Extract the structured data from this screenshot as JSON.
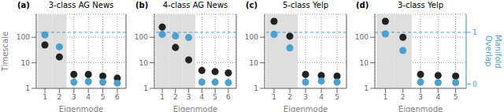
{
  "chart_data": [
    {
      "type": "scatter",
      "title": "3-class AG News",
      "annotation": "(a)",
      "xlabel": "Eigenmode",
      "ylabel": "Timescale",
      "log": "y",
      "grid": true,
      "x": [
        1,
        2,
        3,
        4,
        5,
        6
      ],
      "xlim": [
        0.4,
        6.6
      ],
      "xticks": [
        1,
        2,
        3,
        4,
        5,
        6
      ],
      "ylim": [
        1,
        800
      ],
      "yticks": [
        1,
        10,
        100
      ],
      "y2lim": [
        -0.08,
        1.35
      ],
      "series": [
        {
          "color": "#222222",
          "values": [
            50,
            17,
            3.5,
            3.5,
            3.0,
            2.5
          ]
        },
        {
          "color": "#4d9fcc",
          "axis": "y2",
          "values": [
            0.95,
            0.72,
            0.04,
            0.05,
            0.04,
            0.02
          ]
        }
      ],
      "shaded": {
        "x": [
          1,
          2
        ],
        "color": "#dedede"
      },
      "reference_line": {
        "y2": 1.0,
        "color": "#4d9fcc",
        "line_style": "dashed"
      }
    },
    {
      "type": "scatter",
      "title": "4-class AG News",
      "annotation": "(b)",
      "xlabel": "Eigenmode",
      "log": "y",
      "grid": true,
      "x": [
        1,
        2,
        3,
        4,
        5,
        6
      ],
      "xlim": [
        0.4,
        6.6
      ],
      "xticks": [
        1,
        2,
        3,
        4,
        5,
        6
      ],
      "ylim": [
        1,
        800
      ],
      "yticks": [
        1,
        10,
        100
      ],
      "y2lim": [
        -0.08,
        1.35
      ],
      "series": [
        {
          "color": "#222222",
          "values": [
            250,
            40,
            13,
            5.0,
            4.5,
            4.0
          ]
        },
        {
          "color": "#4d9fcc",
          "axis": "y2",
          "values": [
            0.96,
            0.93,
            0.9,
            0.04,
            0.04,
            0.03
          ]
        }
      ],
      "shaded": {
        "x": [
          1,
          2,
          3
        ],
        "color": "#dedede"
      },
      "reference_line": {
        "y2": 1.0,
        "color": "#4d9fcc",
        "line_style": "dashed"
      }
    },
    {
      "type": "scatter",
      "title": "5-class Yelp",
      "annotation": "(c)",
      "xlabel": "Eigenmode",
      "log": "y",
      "grid": true,
      "x": [
        1,
        2,
        3,
        4,
        5
      ],
      "xlim": [
        0.4,
        5.6
      ],
      "xticks": [
        1,
        2,
        3,
        4,
        5
      ],
      "ylim": [
        1,
        800
      ],
      "yticks": [
        1,
        10,
        100
      ],
      "y2lim": [
        -0.08,
        1.35
      ],
      "series": [
        {
          "color": "#222222",
          "values": [
            420,
            110,
            3.5,
            3.2,
            3.0
          ]
        },
        {
          "color": "#4d9fcc",
          "axis": "y2",
          "values": [
            0.96,
            0.7,
            0.04,
            0.06,
            0.04
          ]
        }
      ],
      "shaded": {
        "x": [
          1,
          2
        ],
        "color": "#dedede"
      },
      "reference_line": {
        "y2": 1.0,
        "color": "#4d9fcc",
        "line_style": "dashed"
      }
    },
    {
      "type": "scatter",
      "title": "3-class Yelp",
      "annotation": "(d)",
      "xlabel": "Eigenmode",
      "y2label": "Manifold\nOverlap",
      "log": "y",
      "grid": true,
      "x": [
        1,
        2,
        3,
        4,
        5
      ],
      "xlim": [
        0.4,
        5.6
      ],
      "xticks": [
        1,
        2,
        3,
        4,
        5
      ],
      "ylim": [
        1,
        800
      ],
      "yticks": [
        1,
        10,
        100
      ],
      "y2lim": [
        -0.08,
        1.35
      ],
      "y2ticks": [
        0,
        1
      ],
      "series": [
        {
          "color": "#222222",
          "values": [
            420,
            100,
            3.5,
            3.2,
            3.0
          ]
        },
        {
          "color": "#4d9fcc",
          "axis": "y2",
          "values": [
            0.97,
            0.65,
            0.04,
            0.03,
            0.03
          ]
        }
      ],
      "shaded": {
        "x": [
          1,
          2
        ],
        "color": "#dedede"
      },
      "reference_line": {
        "y2": 1.0,
        "color": "#4d9fcc",
        "line_style": "dashed"
      }
    }
  ]
}
